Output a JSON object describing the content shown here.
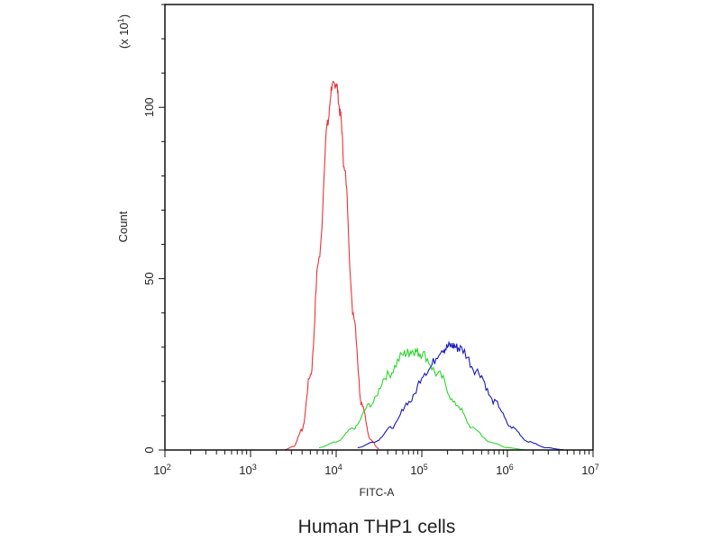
{
  "chart_data": {
    "type": "line",
    "title": "Human THP1 cells",
    "xlabel": "FITC-A",
    "ylabel": "Count",
    "y_multiplier": "(x 10",
    "y_multiplier_exp": "1",
    "y_multiplier_close": ")",
    "x_scale": "log",
    "xlim": [
      100,
      10000000
    ],
    "ylim": [
      0,
      130
    ],
    "grid": false,
    "x_ticks": [
      {
        "base": "10",
        "exp": "2",
        "value": 100
      },
      {
        "base": "10",
        "exp": "3",
        "value": 1000
      },
      {
        "base": "10",
        "exp": "4",
        "value": 10000
      },
      {
        "base": "10",
        "exp": "5",
        "value": 100000
      },
      {
        "base": "10",
        "exp": "6",
        "value": 1000000
      },
      {
        "base": "10",
        "exp": "7",
        "value": 10000000
      }
    ],
    "y_ticks": [
      {
        "label": "0",
        "value": 0
      },
      {
        "label": "50",
        "value": 50
      },
      {
        "label": "100",
        "value": 100
      }
    ],
    "series": [
      {
        "color": "#e8333a",
        "x": [
          2512,
          3162,
          3981,
          5012,
          6310,
          7943,
          8913,
          10000,
          11220,
          12589,
          15849,
          19953,
          25119,
          31623
        ],
        "y": [
          0.1,
          1.0,
          5.8,
          22,
          56,
          95,
          106,
          107,
          98,
          81,
          40,
          13.5,
          3,
          0.4
        ]
      },
      {
        "color": "#2ed62e",
        "x": [
          6310,
          10000,
          15849,
          25119,
          39811,
          63096,
          79433,
          100000,
          158489,
          251189,
          398107,
          630957,
          1000000,
          1584893
        ],
        "y": [
          0.7,
          2.3,
          6.3,
          13.3,
          21.9,
          28.1,
          29,
          28.1,
          21.9,
          13.3,
          6.3,
          2.3,
          0.7,
          0.1
        ]
      },
      {
        "color": "#1a1ab8",
        "x": [
          17783,
          28184,
          44668,
          70795,
          112202,
          177828,
          223872,
          281838,
          446684,
          707946,
          1122018,
          1778279,
          2818383,
          4466836
        ],
        "y": [
          0.7,
          2.4,
          6.6,
          14,
          23,
          29.6,
          30.5,
          29.6,
          23,
          14,
          6.6,
          2.4,
          0.7,
          0.1
        ]
      }
    ]
  }
}
